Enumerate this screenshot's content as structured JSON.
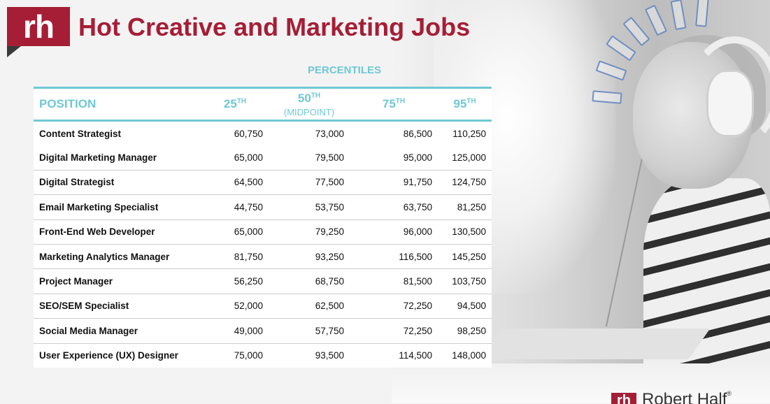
{
  "header": {
    "logo_text": "rh",
    "title": "Hot Creative and Marketing Jobs"
  },
  "table": {
    "group_label": "PERCENTILES",
    "columns": {
      "position": "POSITION",
      "p25": "25",
      "p25_sup": "TH",
      "p50": "50",
      "p50_sup": "TH",
      "p50_note": "(MIDPOINT)",
      "p75": "75",
      "p75_sup": "TH",
      "p95": "95",
      "p95_sup": "TH"
    },
    "rows": [
      {
        "position": "Content Strategist",
        "p25": "60,750",
        "p50": "73,000",
        "p75": "86,500",
        "p95": "110,250"
      },
      {
        "position": "Digital Marketing Manager",
        "p25": "65,000",
        "p50": "79,500",
        "p75": "95,000",
        "p95": "125,000"
      },
      {
        "position": "Digital Strategist",
        "p25": "64,500",
        "p50": "77,500",
        "p75": "91,750",
        "p95": "124,750"
      },
      {
        "position": "Email Marketing Specialist",
        "p25": "44,750",
        "p50": "53,750",
        "p75": "63,750",
        "p95": "81,250"
      },
      {
        "position": "Front-End Web Developer",
        "p25": "65,000",
        "p50": "79,250",
        "p75": "96,000",
        "p95": "130,500"
      },
      {
        "position": "Marketing Analytics Manager",
        "p25": "81,750",
        "p50": "93,250",
        "p75": "116,500",
        "p95": "145,250"
      },
      {
        "position": "Project Manager",
        "p25": "56,250",
        "p50": "68,750",
        "p75": "81,500",
        "p95": "103,750"
      },
      {
        "position": "SEO/SEM Specialist",
        "p25": "52,000",
        "p50": "62,500",
        "p75": "72,250",
        "p95": "94,500"
      },
      {
        "position": "Social Media Manager",
        "p25": "49,000",
        "p50": "57,750",
        "p75": "72,250",
        "p95": "98,250"
      },
      {
        "position": "User Experience (UX) Designer",
        "p25": "75,000",
        "p50": "93,500",
        "p75": "114,500",
        "p95": "148,000"
      }
    ]
  },
  "footer": {
    "brand_mark": "rh",
    "brand_name": "Robert Half",
    "brand_reg": "®"
  },
  "colors": {
    "brand": "#a51e36",
    "accent": "#6fc8d4",
    "text": "#111111"
  },
  "icons": {
    "logo": "rh-logo-icon",
    "rays": "light-ray-icon"
  }
}
